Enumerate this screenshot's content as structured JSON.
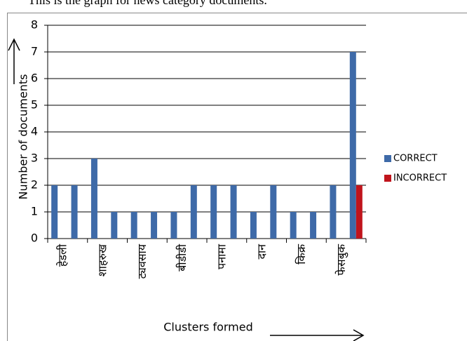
{
  "page_text": "This is the graph for news category documents.",
  "chart_data": {
    "type": "bar",
    "categories": [
      "हेडली",
      null,
      "शाहरुख",
      null,
      "ट्यवसाय",
      null,
      "बीडीडी",
      null,
      "पनामा",
      null,
      "दान",
      null,
      "किक्र",
      null,
      "फेसबुक",
      null
    ],
    "series": [
      {
        "name": "CORRECT",
        "color": "#3e6aa8",
        "values": [
          2,
          2,
          3,
          1,
          1,
          1,
          1,
          2,
          2,
          2,
          1,
          2,
          1,
          1,
          2,
          7
        ]
      },
      {
        "name": "INCORRECT",
        "color": "#c0141c",
        "values": [
          0,
          0,
          0,
          0,
          0,
          0,
          0,
          0,
          0,
          0,
          0,
          0,
          0,
          0,
          0,
          2
        ]
      }
    ],
    "ylim": [
      0,
      8
    ],
    "yticks": [
      0,
      1,
      2,
      3,
      4,
      5,
      6,
      7,
      8
    ],
    "grid": true,
    "y_label": "Number of documents",
    "x_label": "Clusters formed",
    "legend": "right"
  }
}
